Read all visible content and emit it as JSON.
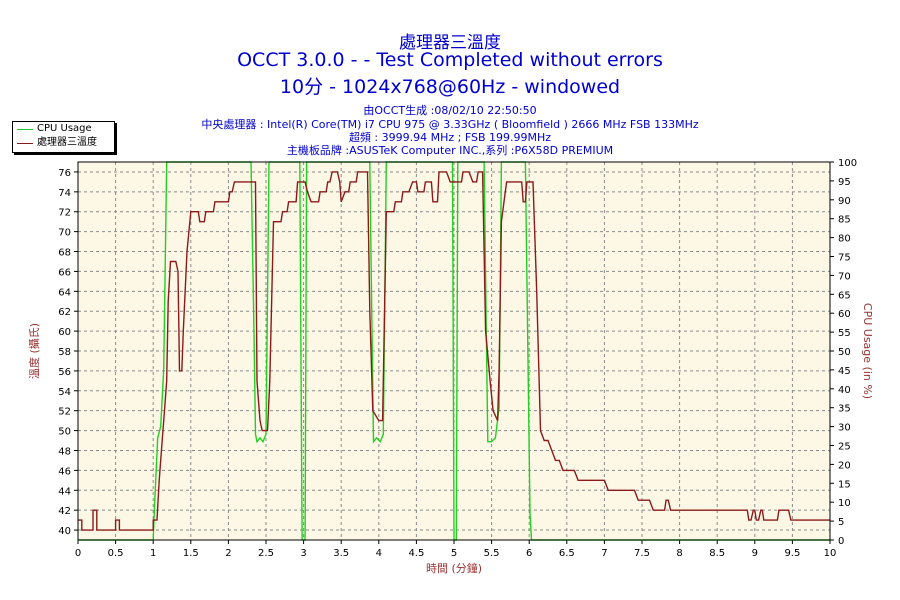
{
  "header": {
    "title_line1": "處理器三溫度",
    "title_line2": "OCCT 3.0.0 -  - Test Completed without errors",
    "title_line3": "10分 - 1024x768@60Hz - windowed",
    "info_line1": "由OCCT生成 :08/02/10 22:50:50",
    "info_line2": "中央處理器 : Intel(R) Core(TM) i7 CPU 975 @ 3.33GHz ( Bloomfield ) 2666 MHz FSB 133MHz",
    "info_line3": "超頻 : 3999.94 MHz ; FSB 199.99MHz",
    "info_line4": "主機板品牌 :ASUSTeK Computer INC.,系列 :P6X58D PREMIUM"
  },
  "colors": {
    "plot_background": "#fdf8e6",
    "grid": "#8a8a8a",
    "temperature_series": "#8b1a1a",
    "cpu_usage_series": "#22d022",
    "axis": "#000000",
    "axis_label": "#993333"
  },
  "chart_data": {
    "type": "line",
    "xlabel": "時間 (分鐘)",
    "ylabel_left": "溫度 (攝氏)",
    "ylabel_right": "CPU Usage (in %)",
    "xlim": [
      0,
      10
    ],
    "ylim_left": [
      39,
      77
    ],
    "ylim_right": [
      0,
      100
    ],
    "x_ticks": [
      "0",
      "0.5",
      "1",
      "1.5",
      "2",
      "2.5",
      "3",
      "3.5",
      "4",
      "4.5",
      "5",
      "5.5",
      "6",
      "6.5",
      "7",
      "7.5",
      "8",
      "8.5",
      "9",
      "9.5",
      "10"
    ],
    "y_left_ticks": [
      "40",
      "42",
      "44",
      "46",
      "48",
      "50",
      "52",
      "54",
      "56",
      "58",
      "60",
      "62",
      "64",
      "66",
      "68",
      "70",
      "72",
      "74",
      "76"
    ],
    "y_right_ticks": [
      "0",
      "5",
      "10",
      "15",
      "20",
      "25",
      "30",
      "35",
      "40",
      "45",
      "50",
      "55",
      "60",
      "65",
      "70",
      "75",
      "80",
      "85",
      "90",
      "95",
      "100"
    ],
    "grid": true,
    "legend_position": "top-left, outside plot",
    "series": [
      {
        "name": "CPU Usage",
        "axis": "right",
        "points": [
          [
            0,
            0
          ],
          [
            1,
            0
          ],
          [
            1.02,
            10
          ],
          [
            1.06,
            27
          ],
          [
            1.1,
            30
          ],
          [
            1.14,
            45
          ],
          [
            1.18,
            100
          ],
          [
            2.3,
            100
          ],
          [
            2.34,
            55
          ],
          [
            2.36,
            28
          ],
          [
            2.38,
            26
          ],
          [
            2.42,
            27
          ],
          [
            2.46,
            26
          ],
          [
            2.5,
            28
          ],
          [
            2.54,
            100
          ],
          [
            2.95,
            100
          ],
          [
            2.98,
            0
          ],
          [
            3.02,
            0
          ],
          [
            3.04,
            100
          ],
          [
            3.88,
            100
          ],
          [
            3.91,
            55
          ],
          [
            3.93,
            26
          ],
          [
            3.97,
            27
          ],
          [
            4.02,
            26
          ],
          [
            4.06,
            28
          ],
          [
            4.1,
            100
          ],
          [
            4.98,
            100
          ],
          [
            5,
            0
          ],
          [
            5.03,
            0
          ],
          [
            5.05,
            100
          ],
          [
            5.4,
            100
          ],
          [
            5.43,
            55
          ],
          [
            5.45,
            26
          ],
          [
            5.5,
            26
          ],
          [
            5.55,
            27
          ],
          [
            5.6,
            35
          ],
          [
            5.63,
            100
          ],
          [
            5.95,
            100
          ],
          [
            6.01,
            7
          ],
          [
            6.03,
            0
          ],
          [
            10,
            0
          ]
        ]
      },
      {
        "name": "處理器三溫度",
        "axis": "left",
        "points": [
          [
            0,
            41
          ],
          [
            0.05,
            41
          ],
          [
            0.05,
            40
          ],
          [
            0.2,
            40
          ],
          [
            0.2,
            42
          ],
          [
            0.25,
            42
          ],
          [
            0.25,
            40
          ],
          [
            0.5,
            40
          ],
          [
            0.5,
            41
          ],
          [
            0.55,
            41
          ],
          [
            0.55,
            40
          ],
          [
            1,
            40
          ],
          [
            1,
            41
          ],
          [
            1.05,
            41
          ],
          [
            1.08,
            45
          ],
          [
            1.12,
            49
          ],
          [
            1.15,
            52
          ],
          [
            1.18,
            55
          ],
          [
            1.2,
            63
          ],
          [
            1.23,
            67
          ],
          [
            1.3,
            67
          ],
          [
            1.33,
            66
          ],
          [
            1.35,
            56
          ],
          [
            1.38,
            56
          ],
          [
            1.4,
            60
          ],
          [
            1.45,
            68
          ],
          [
            1.5,
            72
          ],
          [
            1.6,
            72
          ],
          [
            1.62,
            71
          ],
          [
            1.68,
            71
          ],
          [
            1.7,
            72
          ],
          [
            1.8,
            72
          ],
          [
            1.82,
            73
          ],
          [
            2,
            73
          ],
          [
            2.02,
            74
          ],
          [
            2.05,
            74
          ],
          [
            2.08,
            75
          ],
          [
            2.36,
            75
          ],
          [
            2.38,
            55
          ],
          [
            2.42,
            51
          ],
          [
            2.45,
            50
          ],
          [
            2.52,
            50
          ],
          [
            2.55,
            55
          ],
          [
            2.6,
            71
          ],
          [
            2.7,
            71
          ],
          [
            2.72,
            72
          ],
          [
            2.78,
            72
          ],
          [
            2.8,
            73
          ],
          [
            2.9,
            73
          ],
          [
            2.92,
            75
          ],
          [
            3.02,
            75
          ],
          [
            3.05,
            74
          ],
          [
            3.1,
            73
          ],
          [
            3.2,
            73
          ],
          [
            3.22,
            74
          ],
          [
            3.3,
            74
          ],
          [
            3.32,
            75
          ],
          [
            3.35,
            75
          ],
          [
            3.38,
            76
          ],
          [
            3.45,
            76
          ],
          [
            3.48,
            75
          ],
          [
            3.5,
            73
          ],
          [
            3.55,
            74
          ],
          [
            3.6,
            74
          ],
          [
            3.62,
            75
          ],
          [
            3.7,
            75
          ],
          [
            3.72,
            76
          ],
          [
            3.85,
            76
          ],
          [
            3.88,
            62
          ],
          [
            3.92,
            52
          ],
          [
            4,
            51
          ],
          [
            4.05,
            51
          ],
          [
            4.1,
            72
          ],
          [
            4.2,
            72
          ],
          [
            4.22,
            73
          ],
          [
            4.3,
            73
          ],
          [
            4.32,
            74
          ],
          [
            4.4,
            74
          ],
          [
            4.45,
            75
          ],
          [
            4.5,
            75
          ],
          [
            4.52,
            74
          ],
          [
            4.6,
            74
          ],
          [
            4.62,
            75
          ],
          [
            4.7,
            75
          ],
          [
            4.72,
            73
          ],
          [
            4.78,
            73
          ],
          [
            4.8,
            76
          ],
          [
            4.9,
            76
          ],
          [
            4.95,
            75
          ],
          [
            5.1,
            75
          ],
          [
            5.12,
            76
          ],
          [
            5.2,
            76
          ],
          [
            5.25,
            75
          ],
          [
            5.3,
            75
          ],
          [
            5.32,
            76
          ],
          [
            5.38,
            76
          ],
          [
            5.42,
            60
          ],
          [
            5.48,
            55
          ],
          [
            5.52,
            52
          ],
          [
            5.58,
            51
          ],
          [
            5.6,
            56
          ],
          [
            5.63,
            71
          ],
          [
            5.7,
            75
          ],
          [
            5.8,
            75
          ],
          [
            5.9,
            75
          ],
          [
            5.92,
            73
          ],
          [
            5.95,
            73
          ],
          [
            5.97,
            75
          ],
          [
            6.05,
            75
          ],
          [
            6.1,
            64
          ],
          [
            6.15,
            50
          ],
          [
            6.2,
            49
          ],
          [
            6.25,
            49
          ],
          [
            6.3,
            48
          ],
          [
            6.35,
            47
          ],
          [
            6.4,
            47
          ],
          [
            6.45,
            46
          ],
          [
            6.6,
            46
          ],
          [
            6.65,
            45
          ],
          [
            7,
            45
          ],
          [
            7.05,
            44
          ],
          [
            7.4,
            44
          ],
          [
            7.45,
            43
          ],
          [
            7.6,
            43
          ],
          [
            7.65,
            42
          ],
          [
            7.8,
            42
          ],
          [
            7.82,
            43
          ],
          [
            7.85,
            43
          ],
          [
            7.88,
            42
          ],
          [
            8.9,
            42
          ],
          [
            8.92,
            41
          ],
          [
            8.95,
            41
          ],
          [
            8.98,
            42
          ],
          [
            9,
            42
          ],
          [
            9.02,
            41
          ],
          [
            9.05,
            41
          ],
          [
            9.08,
            42
          ],
          [
            9.1,
            42
          ],
          [
            9.12,
            41
          ],
          [
            9.3,
            41
          ],
          [
            9.32,
            42
          ],
          [
            9.45,
            42
          ],
          [
            9.48,
            41
          ],
          [
            10,
            41
          ]
        ]
      }
    ]
  }
}
